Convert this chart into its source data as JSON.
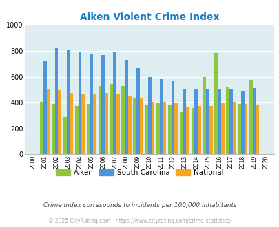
{
  "title": "Aiken Violent Crime Index",
  "years": [
    2000,
    2001,
    2002,
    2003,
    2004,
    2005,
    2006,
    2007,
    2008,
    2009,
    2010,
    2011,
    2012,
    2013,
    2014,
    2015,
    2016,
    2017,
    2018,
    2019,
    2020
  ],
  "aiken": [
    0,
    400,
    390,
    290,
    375,
    390,
    530,
    545,
    530,
    435,
    380,
    395,
    385,
    325,
    360,
    600,
    785,
    525,
    390,
    575,
    0
  ],
  "south_carolina": [
    0,
    720,
    820,
    805,
    795,
    780,
    770,
    795,
    730,
    665,
    600,
    580,
    565,
    500,
    500,
    500,
    505,
    505,
    490,
    510,
    0
  ],
  "national": [
    0,
    500,
    495,
    475,
    465,
    465,
    475,
    465,
    455,
    435,
    405,
    400,
    395,
    370,
    375,
    375,
    395,
    400,
    390,
    385,
    0
  ],
  "aiken_color": "#8dc63f",
  "sc_color": "#4d94db",
  "national_color": "#f5a623",
  "bg_color": "#deeef0",
  "ylim": [
    0,
    1000
  ],
  "yticks": [
    0,
    200,
    400,
    600,
    800,
    1000
  ],
  "title_color": "#1a7dc4",
  "subtitle": "Crime Index corresponds to incidents per 100,000 inhabitants",
  "copyright": "© 2025 CityRating.com - https://www.cityrating.com/crime-statistics/",
  "subtitle_color": "#444444",
  "copyright_color": "#aaaaaa",
  "legend_labels": [
    "Aiken",
    "South Carolina",
    "National"
  ]
}
